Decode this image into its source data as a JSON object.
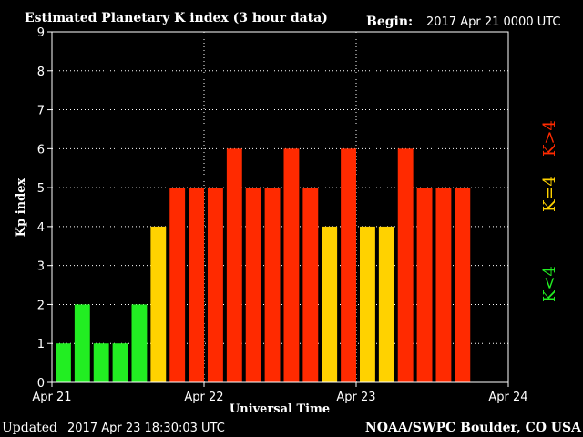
{
  "header": {
    "title": "Estimated Planetary K index (3 hour data)",
    "begin_label": "Begin:",
    "begin_value": "2017 Apr 21 0000 UTC"
  },
  "footer": {
    "updated_label": "Updated",
    "updated_value": "2017 Apr 23 18:30:03 UTC",
    "credit": "NOAA/SWPC Boulder, CO USA"
  },
  "legend": {
    "low": "K<4",
    "mid": "K=4",
    "high": "K>4"
  },
  "colors": {
    "low": "#22ee22",
    "mid": "#ffd200",
    "high": "#ff2a00",
    "background": "#000000",
    "axis": "#ffffff",
    "grid": "#ffffff"
  },
  "chart_data": {
    "type": "bar",
    "title": "Estimated Planetary K index (3 hour data)",
    "xlabel": "Universal Time",
    "ylabel": "Kp index",
    "ylim": [
      0,
      9
    ],
    "yticks": [
      "0",
      "1",
      "2",
      "3",
      "4",
      "5",
      "6",
      "7",
      "8",
      "9"
    ],
    "xticks": [
      "Apr 21",
      "Apr 22",
      "Apr 23",
      "Apr 24"
    ],
    "bar_interval_hours": 3,
    "x_range_hours": [
      0,
      72
    ],
    "grid": "dotted",
    "values": [
      1,
      2,
      1,
      1,
      2,
      4,
      5,
      5,
      5,
      6,
      5,
      5,
      6,
      5,
      4,
      6,
      4,
      4,
      6,
      5,
      5,
      5
    ]
  }
}
